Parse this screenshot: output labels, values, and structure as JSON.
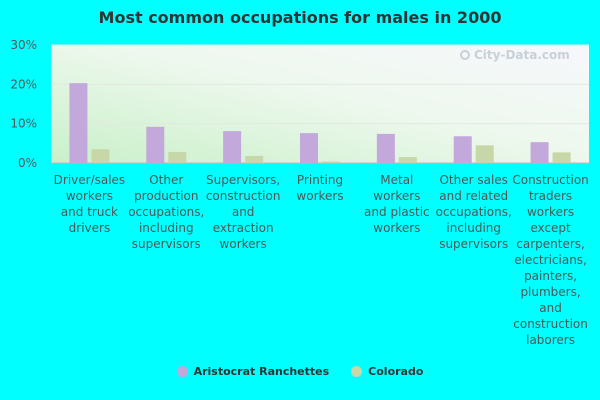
{
  "chart_data": {
    "type": "bar",
    "title": "Most common occupations for males in 2000",
    "categories": [
      "Driver/sales workers and truck drivers",
      "Other production occupations, including supervisors",
      "Supervisors, construction and extraction workers",
      "Printing workers",
      "Metal workers and plastic workers",
      "Other sales and related occupations, including supervisors",
      "Construction traders workers except carpenters, electricians, painters, plumbers, and construction laborers"
    ],
    "category_lines": [
      [
        "Driver/sales",
        "workers",
        "and truck",
        "drivers"
      ],
      [
        "Other",
        "production",
        "occupations,",
        "including",
        "supervisors"
      ],
      [
        "Supervisors,",
        "construction",
        "and",
        "extraction",
        "workers"
      ],
      [
        "Printing",
        "workers"
      ],
      [
        "Metal",
        "workers",
        "and plastic",
        "workers"
      ],
      [
        "Other sales",
        "and related",
        "occupations,",
        "including",
        "supervisors"
      ],
      [
        "Construction",
        "traders",
        "workers",
        "except",
        "carpenters,",
        "electricians,",
        "painters,",
        "plumbers,",
        "and",
        "construction",
        "laborers"
      ]
    ],
    "series": [
      {
        "name": "Aristocrat Ranchettes",
        "color": "#c3a8dc",
        "values": [
          20.3,
          9.2,
          8.1,
          7.6,
          7.4,
          6.8,
          5.3
        ]
      },
      {
        "name": "Colorado",
        "color": "#c8d7a8",
        "values": [
          3.5,
          2.8,
          1.8,
          0.4,
          1.5,
          4.5,
          2.7
        ]
      }
    ],
    "ylim": [
      0,
      30
    ],
    "yticks": [
      "0%",
      "10%",
      "20%",
      "30%"
    ],
    "ytick_values": [
      0,
      10,
      20,
      30
    ],
    "legend_position": "bottom",
    "grid": true
  },
  "watermark": "City-Data.com"
}
